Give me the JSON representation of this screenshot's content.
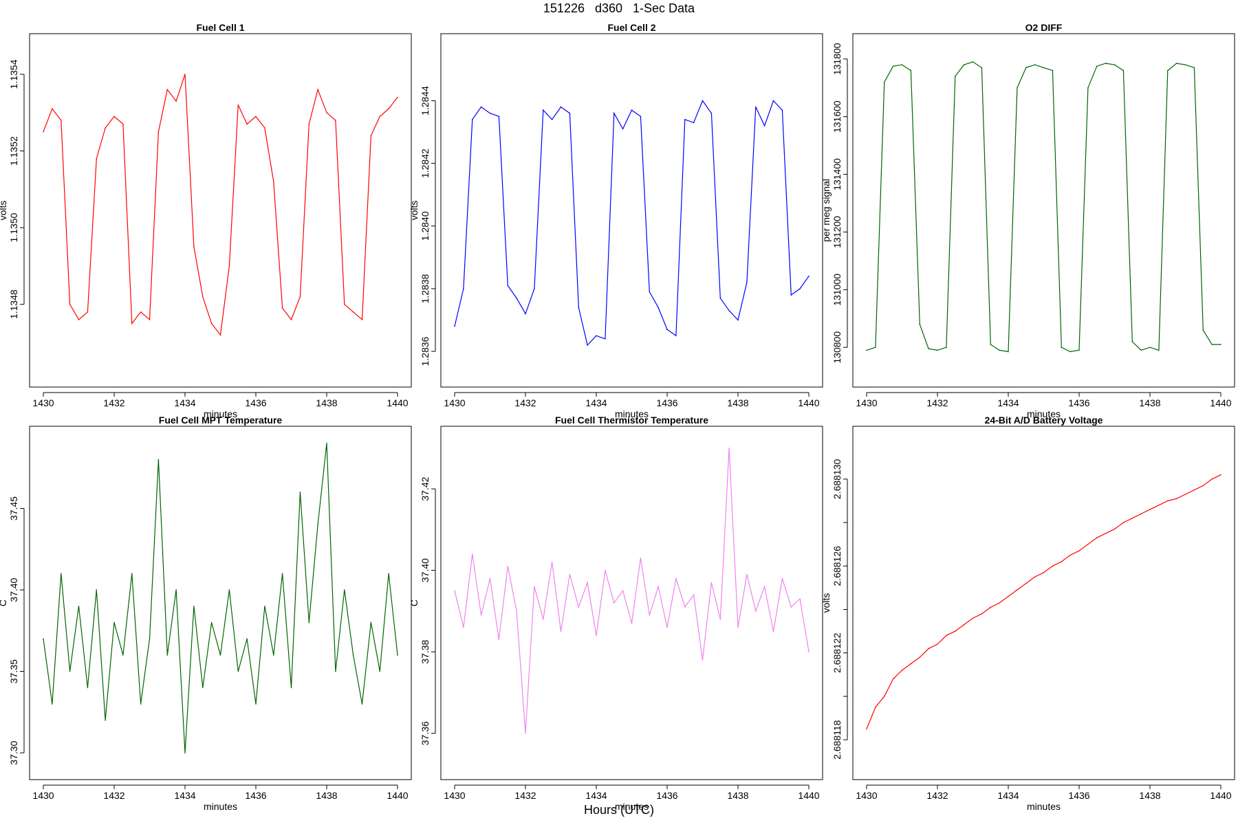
{
  "page": {
    "title": "151226   d360   1-Sec Data",
    "footer": "Hours (UTC)"
  },
  "chart_data": [
    {
      "type": "line",
      "title": "Fuel Cell 1",
      "xlabel": "minutes",
      "ylabel": "volts",
      "color": "#ff0000",
      "xlim": [
        1430,
        1440
      ],
      "ylim": [
        1.13462,
        1.13547
      ],
      "x_ticks": [
        1430,
        1432,
        1434,
        1436,
        1438,
        1440
      ],
      "y_ticks": [
        1.1348,
        1.135,
        1.1352,
        1.1354
      ],
      "y_tick_labels": [
        "1.1348",
        "1.1350",
        "1.1352",
        "1.1354"
      ],
      "x": [
        1430.0,
        1430.25,
        1430.5,
        1430.75,
        1431.0,
        1431.25,
        1431.5,
        1431.75,
        1432.0,
        1432.25,
        1432.5,
        1432.75,
        1433.0,
        1433.25,
        1433.5,
        1433.75,
        1434.0,
        1434.25,
        1434.5,
        1434.75,
        1435.0,
        1435.25,
        1435.5,
        1435.75,
        1436.0,
        1436.25,
        1436.5,
        1436.75,
        1437.0,
        1437.25,
        1437.5,
        1437.75,
        1438.0,
        1438.25,
        1438.5,
        1438.75,
        1439.0,
        1439.25,
        1439.5,
        1439.75,
        1440.0
      ],
      "values": [
        1.13525,
        1.13531,
        1.13528,
        1.1348,
        1.13476,
        1.13478,
        1.13518,
        1.13526,
        1.13529,
        1.13527,
        1.13475,
        1.13478,
        1.13476,
        1.13525,
        1.13536,
        1.13533,
        1.1354,
        1.13495,
        1.13482,
        1.13475,
        1.13472,
        1.1349,
        1.13532,
        1.13527,
        1.13529,
        1.13526,
        1.13512,
        1.13479,
        1.13476,
        1.13482,
        1.13527,
        1.13536,
        1.1353,
        1.13528,
        1.1348,
        1.13478,
        1.13476,
        1.13524,
        1.13529,
        1.13531,
        1.13534
      ],
      "series_name": "Fuel Cell 1"
    },
    {
      "type": "line",
      "title": "Fuel Cell 2",
      "xlabel": "minutes",
      "ylabel": "volts",
      "color": "#0000ff",
      "xlim": [
        1430,
        1440
      ],
      "ylim": [
        1.28353,
        1.28457
      ],
      "x_ticks": [
        1430,
        1432,
        1434,
        1436,
        1438,
        1440
      ],
      "y_ticks": [
        1.2836,
        1.2838,
        1.284,
        1.2842,
        1.2844
      ],
      "y_tick_labels": [
        "1.2836",
        "1.2838",
        "1.2840",
        "1.2842",
        "1.2844"
      ],
      "x": [
        1430.0,
        1430.25,
        1430.5,
        1430.75,
        1431.0,
        1431.25,
        1431.5,
        1431.75,
        1432.0,
        1432.25,
        1432.5,
        1432.75,
        1433.0,
        1433.25,
        1433.5,
        1433.75,
        1434.0,
        1434.25,
        1434.5,
        1434.75,
        1435.0,
        1435.25,
        1435.5,
        1435.75,
        1436.0,
        1436.25,
        1436.5,
        1436.75,
        1437.0,
        1437.25,
        1437.5,
        1437.75,
        1438.0,
        1438.25,
        1438.5,
        1438.75,
        1439.0,
        1439.25,
        1439.5,
        1439.75,
        1440.0
      ],
      "values": [
        1.28368,
        1.2838,
        1.28434,
        1.28438,
        1.28436,
        1.28435,
        1.28381,
        1.28377,
        1.28372,
        1.2838,
        1.28437,
        1.28434,
        1.28438,
        1.28436,
        1.28374,
        1.28362,
        1.28365,
        1.28364,
        1.28436,
        1.28431,
        1.28437,
        1.28435,
        1.28379,
        1.28374,
        1.28367,
        1.28365,
        1.28434,
        1.28433,
        1.2844,
        1.28436,
        1.28377,
        1.28373,
        1.2837,
        1.28382,
        1.28438,
        1.28432,
        1.2844,
        1.28437,
        1.28378,
        1.2838,
        1.28384
      ],
      "series_name": "Fuel Cell 2"
    },
    {
      "type": "line",
      "title": "O2 DIFF",
      "xlabel": "minutes",
      "ylabel": "per meg signal",
      "color": "#006400",
      "xlim": [
        1430,
        1440
      ],
      "ylim": [
        130710,
        131840
      ],
      "x_ticks": [
        1430,
        1432,
        1434,
        1436,
        1438,
        1440
      ],
      "y_ticks": [
        130800,
        131000,
        131200,
        131400,
        131600,
        131800
      ],
      "y_tick_labels": [
        "130800",
        "131000",
        "131200",
        "131400",
        "131600",
        "131800"
      ],
      "x": [
        1430.0,
        1430.25,
        1430.5,
        1430.75,
        1431.0,
        1431.25,
        1431.5,
        1431.75,
        1432.0,
        1432.25,
        1432.5,
        1432.75,
        1433.0,
        1433.25,
        1433.5,
        1433.75,
        1434.0,
        1434.25,
        1434.5,
        1434.75,
        1435.0,
        1435.25,
        1435.5,
        1435.75,
        1436.0,
        1436.25,
        1436.5,
        1436.75,
        1437.0,
        1437.25,
        1437.5,
        1437.75,
        1438.0,
        1438.25,
        1438.5,
        1438.75,
        1439.0,
        1439.25,
        1439.5,
        1439.75,
        1440.0
      ],
      "values": [
        130790,
        130800,
        131720,
        131775,
        131780,
        131760,
        130880,
        130795,
        130790,
        130800,
        131740,
        131780,
        131790,
        131770,
        130810,
        130790,
        130785,
        131700,
        131770,
        131780,
        131770,
        131760,
        130800,
        130785,
        130790,
        131700,
        131775,
        131785,
        131780,
        131760,
        130820,
        130790,
        130800,
        130790,
        131760,
        131785,
        131780,
        131770,
        130860,
        130810,
        130810
      ],
      "series_name": "O2 DIFF"
    },
    {
      "type": "line",
      "title": "Fuel Cell MPT Temperature",
      "xlabel": "minutes",
      "ylabel": "C",
      "color": "#006400",
      "xlim": [
        1430,
        1440
      ],
      "ylim": [
        37.292,
        37.492
      ],
      "x_ticks": [
        1430,
        1432,
        1434,
        1436,
        1438,
        1440
      ],
      "y_ticks": [
        37.3,
        37.35,
        37.4,
        37.45
      ],
      "y_tick_labels": [
        "37.30",
        "37.35",
        "37.40",
        "37.45"
      ],
      "x": [
        1430.0,
        1430.25,
        1430.5,
        1430.75,
        1431.0,
        1431.25,
        1431.5,
        1431.75,
        1432.0,
        1432.25,
        1432.5,
        1432.75,
        1433.0,
        1433.25,
        1433.5,
        1433.75,
        1434.0,
        1434.25,
        1434.5,
        1434.75,
        1435.0,
        1435.25,
        1435.5,
        1435.75,
        1436.0,
        1436.25,
        1436.5,
        1436.75,
        1437.0,
        1437.25,
        1437.5,
        1437.75,
        1438.0,
        1438.25,
        1438.5,
        1438.75,
        1439.0,
        1439.25,
        1439.5,
        1439.75,
        1440.0
      ],
      "values": [
        37.37,
        37.33,
        37.41,
        37.35,
        37.39,
        37.34,
        37.4,
        37.32,
        37.38,
        37.36,
        37.41,
        37.33,
        37.37,
        37.48,
        37.36,
        37.4,
        37.3,
        37.39,
        37.34,
        37.38,
        37.36,
        37.4,
        37.35,
        37.37,
        37.33,
        37.39,
        37.36,
        37.41,
        37.34,
        37.46,
        37.38,
        37.44,
        37.49,
        37.35,
        37.4,
        37.36,
        37.33,
        37.38,
        37.35,
        37.41,
        37.36
      ],
      "series_name": "MPT Temperature"
    },
    {
      "type": "line",
      "title": "Fuel Cell Thermistor Temperature",
      "xlabel": "minutes",
      "ylabel": "C",
      "color": "#ee82ee",
      "xlim": [
        1430,
        1440
      ],
      "ylim": [
        37.352,
        37.432
      ],
      "x_ticks": [
        1430,
        1432,
        1434,
        1436,
        1438,
        1440
      ],
      "y_ticks": [
        37.36,
        37.38,
        37.4,
        37.42
      ],
      "y_tick_labels": [
        "37.36",
        "37.38",
        "37.40",
        "37.42"
      ],
      "x": [
        1430.0,
        1430.25,
        1430.5,
        1430.75,
        1431.0,
        1431.25,
        1431.5,
        1431.75,
        1432.0,
        1432.25,
        1432.5,
        1432.75,
        1433.0,
        1433.25,
        1433.5,
        1433.75,
        1434.0,
        1434.25,
        1434.5,
        1434.75,
        1435.0,
        1435.25,
        1435.5,
        1435.75,
        1436.0,
        1436.25,
        1436.5,
        1436.75,
        1437.0,
        1437.25,
        1437.5,
        1437.75,
        1438.0,
        1438.25,
        1438.5,
        1438.75,
        1439.0,
        1439.25,
        1439.5,
        1439.75,
        1440.0
      ],
      "values": [
        37.395,
        37.386,
        37.404,
        37.389,
        37.398,
        37.383,
        37.401,
        37.39,
        37.36,
        37.396,
        37.388,
        37.402,
        37.385,
        37.399,
        37.391,
        37.397,
        37.384,
        37.4,
        37.392,
        37.395,
        37.387,
        37.403,
        37.389,
        37.396,
        37.386,
        37.398,
        37.391,
        37.394,
        37.378,
        37.397,
        37.388,
        37.43,
        37.386,
        37.399,
        37.39,
        37.396,
        37.385,
        37.398,
        37.391,
        37.393,
        37.38
      ],
      "series_name": "Thermistor Temperature"
    },
    {
      "type": "line",
      "title": "24-Bit A/D Battery Voltage",
      "xlabel": "minutes",
      "ylabel": "volts",
      "color": "#ff0000",
      "xlim": [
        1430,
        1440
      ],
      "ylim": [
        2.6881168,
        2.6881318
      ],
      "x_ticks": [
        1430,
        1432,
        1434,
        1436,
        1438,
        1440
      ],
      "y_ticks": [
        2.688118,
        2.68812,
        2.688122,
        2.688124,
        2.688126,
        2.688128,
        2.68813
      ],
      "y_tick_labels": [
        "2.688118",
        "",
        "2.688122",
        "",
        "2.688126",
        "",
        "2.688130"
      ],
      "x": [
        1430.0,
        1430.25,
        1430.5,
        1430.75,
        1431.0,
        1431.25,
        1431.5,
        1431.75,
        1432.0,
        1432.25,
        1432.5,
        1432.75,
        1433.0,
        1433.25,
        1433.5,
        1433.75,
        1434.0,
        1434.25,
        1434.5,
        1434.75,
        1435.0,
        1435.25,
        1435.5,
        1435.75,
        1436.0,
        1436.25,
        1436.5,
        1436.75,
        1437.0,
        1437.25,
        1437.5,
        1437.75,
        1438.0,
        1438.25,
        1438.5,
        1438.75,
        1439.0,
        1439.25,
        1439.5,
        1439.75,
        1440.0
      ],
      "values": [
        2.6881185,
        2.6881195,
        2.68812,
        2.6881208,
        2.6881212,
        2.6881215,
        2.6881218,
        2.6881222,
        2.6881224,
        2.6881228,
        2.688123,
        2.6881233,
        2.6881236,
        2.6881238,
        2.6881241,
        2.6881243,
        2.6881246,
        2.6881249,
        2.6881252,
        2.6881255,
        2.6881257,
        2.688126,
        2.6881262,
        2.6881265,
        2.6881267,
        2.688127,
        2.6881273,
        2.6881275,
        2.6881277,
        2.688128,
        2.6881282,
        2.6881284,
        2.6881286,
        2.6881288,
        2.688129,
        2.6881291,
        2.6881293,
        2.6881295,
        2.6881297,
        2.68813,
        2.6881302
      ],
      "series_name": "Battery Voltage"
    }
  ]
}
